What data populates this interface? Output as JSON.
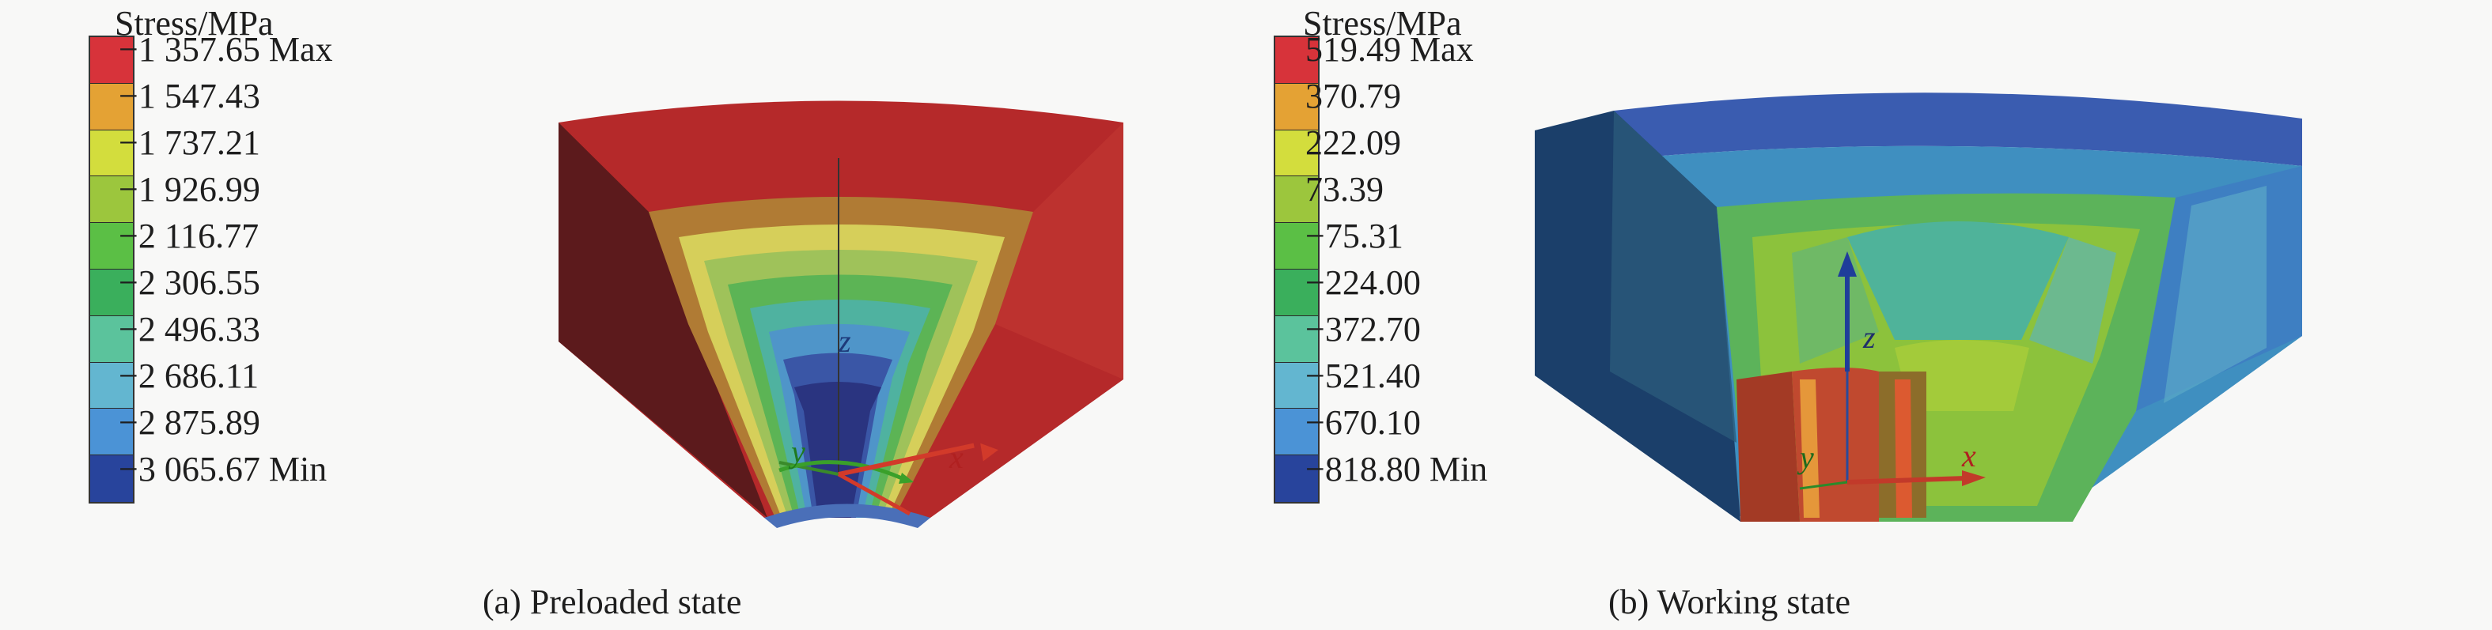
{
  "panel_a": {
    "legend_title": "Stress/MPa",
    "caption": "(a) Preloaded state",
    "labels": [
      "−1 357.65 Max",
      "−1 547.43",
      "−1 737.21",
      "−1 926.99",
      "−2 116.77",
      "−2 306.55",
      "−2 496.33",
      "−2 686.11",
      "−2 875.89",
      "−3 065.67 Min"
    ],
    "colors": [
      "#d7333a",
      "#e4a234",
      "#d3dd3d",
      "#9cc63d",
      "#5bbf45",
      "#3aaf5c",
      "#5bc39c",
      "#63b6d0",
      "#4b93d6",
      "#28449c"
    ],
    "axes": {
      "z": "z",
      "y": "y",
      "x": "x"
    }
  },
  "panel_b": {
    "legend_title": "Stress/MPa",
    "caption": "(b) Working state",
    "labels": [
      "519.49 Max",
      "370.79",
      "222.09",
      "73.39",
      "−75.31",
      "−224.00",
      "−372.70",
      "−521.40",
      "−670.10",
      "−818.80 Min"
    ],
    "colors": [
      "#d7333a",
      "#e4a234",
      "#d3dd3d",
      "#9cc63d",
      "#5bbf45",
      "#3aaf5c",
      "#5bc39c",
      "#63b6d0",
      "#4b93d6",
      "#28449c"
    ],
    "axes": {
      "z": "z",
      "y": "y",
      "x": "x"
    }
  }
}
